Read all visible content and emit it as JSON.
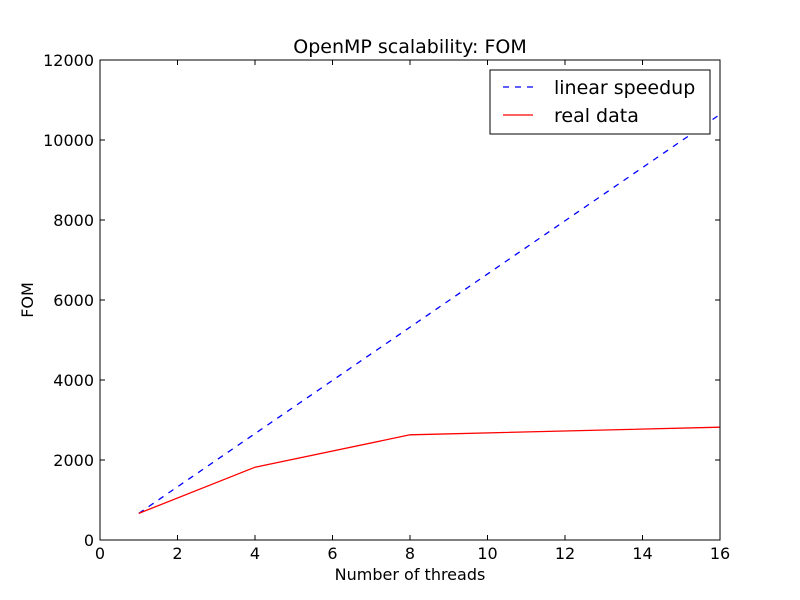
{
  "chart_data": {
    "type": "line",
    "title": "OpenMP scalability: FOM",
    "xlabel": "Number of threads",
    "ylabel": "FOM",
    "xlim": [
      0,
      16
    ],
    "ylim": [
      0,
      12000
    ],
    "xticks": [
      0,
      2,
      4,
      6,
      8,
      10,
      12,
      14,
      16
    ],
    "yticks": [
      0,
      2000,
      4000,
      6000,
      8000,
      10000,
      12000
    ],
    "grid": false,
    "legend_position": "top-right",
    "series": [
      {
        "name": "linear speedup",
        "color": "#0000ff",
        "style": "dashed",
        "x": [
          1,
          16
        ],
        "y": [
          665,
          10640
        ]
      },
      {
        "name": "real data",
        "color": "#ff0000",
        "style": "solid",
        "x": [
          1,
          4,
          8,
          16
        ],
        "y": [
          665,
          1820,
          2630,
          2820
        ]
      }
    ]
  }
}
